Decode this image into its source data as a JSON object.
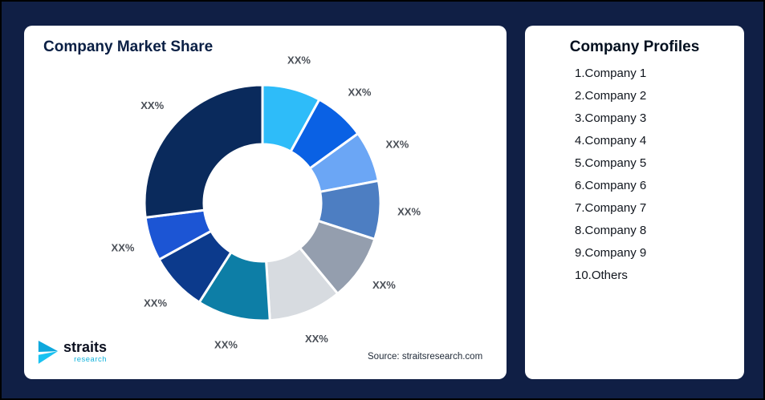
{
  "page": {
    "background_color": "#101f45",
    "border_color": "#000000"
  },
  "market_share_card": {
    "title": "Company Market Share",
    "source_text": "Source: straitsresearch.com"
  },
  "logo": {
    "brand": "straits",
    "sub_brand": "research",
    "accent_color": "#19b7e6"
  },
  "profiles_card": {
    "title": "Company Profiles",
    "items": [
      "1.Company 1",
      "2.Company 2",
      "3.Company 3",
      "4.Company 4",
      "5.Company 5",
      "6.Company 6",
      "7.Company 7",
      "8.Company 8",
      "9.Company 9",
      "10.Others"
    ]
  },
  "chart_data": {
    "type": "pie",
    "subtype": "donut",
    "title": "Company Market Share",
    "legend_position": "none",
    "direction": "clockwise",
    "start_angle_deg": 0,
    "inner_radius_ratio": 0.5,
    "segments": [
      {
        "label": "XX%",
        "value": 8,
        "color": "#2ebcf9"
      },
      {
        "label": "XX%",
        "value": 7,
        "color": "#0a61e4"
      },
      {
        "label": "XX%",
        "value": 7,
        "color": "#6ba6f5"
      },
      {
        "label": "XX%",
        "value": 8,
        "color": "#4d7ec2"
      },
      {
        "label": "XX%",
        "value": 9,
        "color": "#949eae"
      },
      {
        "label": "XX%",
        "value": 10,
        "color": "#d7dbe0"
      },
      {
        "label": "XX%",
        "value": 10,
        "color": "#0d7ea6"
      },
      {
        "label": "XX%",
        "value": 8,
        "color": "#0c3a8c"
      },
      {
        "label": "XX%",
        "value": 6,
        "color": "#1c55d4"
      },
      {
        "label": "XX%",
        "value": 27,
        "color": "#0a2a5c"
      }
    ]
  }
}
